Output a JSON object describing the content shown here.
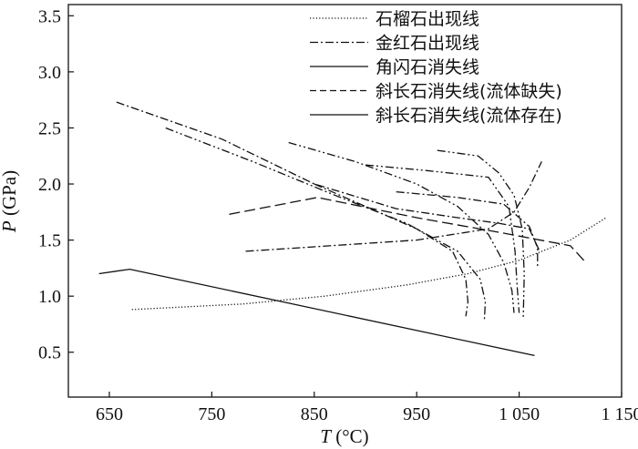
{
  "chart_data": {
    "type": "line",
    "title": "",
    "xlabel_italic": "T",
    "xlabel_rest": " (°C)",
    "ylabel_italic": "P",
    "ylabel_rest": " (GPa)",
    "xlim": [
      610,
      1150
    ],
    "ylim": [
      0.1,
      3.6
    ],
    "xticks": [
      650,
      750,
      850,
      950,
      1050,
      1150
    ],
    "xtick_labels": [
      "650",
      "750",
      "850",
      "950",
      "1 050",
      "1 150"
    ],
    "yticks": [
      0.5,
      1.0,
      1.5,
      2.0,
      2.5,
      3.0,
      3.5
    ],
    "ytick_labels": [
      "0.5",
      "1.0",
      "1.5",
      "2.0",
      "2.5",
      "3.0",
      "3.5"
    ],
    "grid": false,
    "legend_position": "top-right",
    "legend": [
      {
        "label": "石榴石出现线",
        "style": "dotted"
      },
      {
        "label": "金红石出现线",
        "style": "dashdot"
      },
      {
        "label": "角闪石消失线",
        "style": "solid"
      },
      {
        "label": "斜长石消失线(流体缺失)",
        "style": "dashed"
      },
      {
        "label": "斜长石消失线(流体存在)",
        "style": "solid"
      }
    ],
    "series": [
      {
        "style": "solid",
        "points": [
          [
            640,
            1.2
          ],
          [
            670,
            1.24
          ],
          [
            1065,
            0.47
          ]
        ]
      },
      {
        "style": "dotted",
        "points": [
          [
            672,
            0.88
          ],
          [
            780,
            0.93
          ],
          [
            860,
            1.0
          ],
          [
            940,
            1.1
          ],
          [
            1000,
            1.2
          ],
          [
            1050,
            1.32
          ],
          [
            1100,
            1.5
          ],
          [
            1135,
            1.7
          ]
        ]
      },
      {
        "style": "dashdot",
        "points": [
          [
            783,
            1.4
          ],
          [
            850,
            1.44
          ],
          [
            950,
            1.5
          ],
          [
            1020,
            1.6
          ],
          [
            1045,
            1.75
          ],
          [
            1060,
            1.97
          ],
          [
            1072,
            2.2
          ]
        ]
      },
      {
        "style": "longdash",
        "points": [
          [
            767,
            1.73
          ],
          [
            853,
            1.88
          ],
          [
            950,
            1.7
          ],
          [
            1030,
            1.57
          ],
          [
            1100,
            1.45
          ],
          [
            1115,
            1.3
          ]
        ]
      },
      {
        "style": "dashdot",
        "points": [
          [
            657,
            2.73
          ],
          [
            760,
            2.4
          ],
          [
            850,
            2.0
          ],
          [
            930,
            1.78
          ],
          [
            990,
            1.7
          ],
          [
            1030,
            1.65
          ],
          [
            1060,
            1.6
          ],
          [
            1070,
            1.4
          ]
        ]
      },
      {
        "style": "dashdotdot",
        "points": [
          [
            705,
            2.5
          ],
          [
            790,
            2.2
          ],
          [
            870,
            1.9
          ],
          [
            940,
            1.65
          ],
          [
            990,
            1.4
          ],
          [
            1012,
            1.15
          ],
          [
            1017,
            0.95
          ],
          [
            1016,
            0.78
          ]
        ]
      },
      {
        "style": "dashdotdot",
        "points": [
          [
            825,
            2.37
          ],
          [
            890,
            2.2
          ],
          [
            950,
            2.0
          ],
          [
            990,
            1.8
          ],
          [
            1020,
            1.55
          ],
          [
            1035,
            1.3
          ],
          [
            1043,
            1.05
          ],
          [
            1045,
            0.85
          ]
        ]
      },
      {
        "style": "dashdot",
        "points": [
          [
            850,
            2.0
          ],
          [
            900,
            1.8
          ],
          [
            950,
            1.6
          ],
          [
            985,
            1.4
          ],
          [
            998,
            1.15
          ],
          [
            1000,
            0.95
          ],
          [
            998,
            0.82
          ]
        ]
      },
      {
        "style": "dashdotdot",
        "points": [
          [
            900,
            2.17
          ],
          [
            960,
            2.12
          ],
          [
            1020,
            2.06
          ],
          [
            1040,
            1.8
          ],
          [
            1046,
            1.4
          ],
          [
            1048,
            1.1
          ],
          [
            1050,
            0.85
          ]
        ]
      },
      {
        "style": "dashdotdot",
        "points": [
          [
            970,
            2.3
          ],
          [
            1010,
            2.25
          ],
          [
            1030,
            2.1
          ],
          [
            1045,
            1.9
          ],
          [
            1053,
            1.6
          ],
          [
            1055,
            1.2
          ],
          [
            1054,
            0.8
          ]
        ]
      },
      {
        "style": "dashdot",
        "points": [
          [
            930,
            1.93
          ],
          [
            990,
            1.88
          ],
          [
            1035,
            1.82
          ],
          [
            1060,
            1.62
          ],
          [
            1068,
            1.43
          ],
          [
            1068,
            1.25
          ]
        ]
      }
    ]
  }
}
